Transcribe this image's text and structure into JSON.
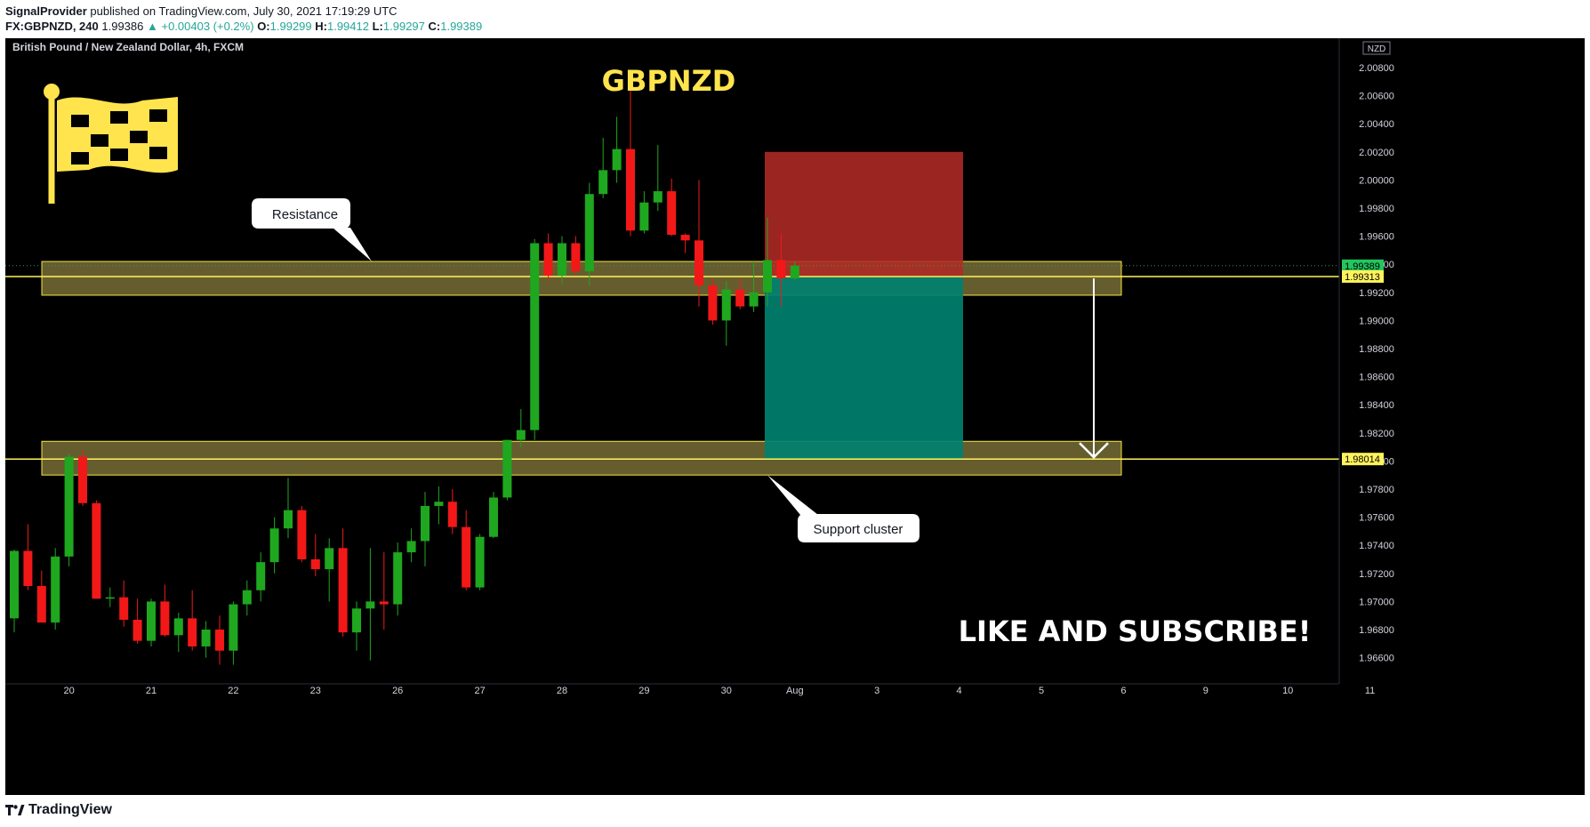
{
  "header": {
    "author": "SignalProvider",
    "published_text": "published on TradingView.com, July 30, 2021 17:19:29 UTC",
    "symbol_interval": "FX:GBPNZD, 240",
    "last": "1.99386",
    "change": "▲ +0.00403 (+0.2%)",
    "o_label": "O:",
    "o": "1.99299",
    "h_label": "H:",
    "h": "1.99412",
    "l_label": "L:",
    "l": "1.99297",
    "c_label": "C:",
    "c": "1.99389"
  },
  "chart": {
    "legend": "British Pound / New Zealand Dollar, 4h, FXCM",
    "currency_badge": "NZD",
    "headline": "GBPNZD",
    "cta": "LIKE AND SUBSCRIBE!",
    "resistance_label": "Resistance",
    "support_label": "Support cluster",
    "price_tag_current": "1.99389",
    "price_tag_entry": "1.99313",
    "price_tag_target": "1.98014"
  },
  "footer": {
    "brand": "TradingView"
  },
  "colors": {
    "background": "#000000",
    "bull": "#1fa71f",
    "bear": "#f21818",
    "zone_fill": "#6b6232",
    "zone_border": "#f5e63c",
    "stop_fill": "#b02a26",
    "target_fill": "#008070",
    "accent_yellow": "#ffe44d",
    "tag_yellow": "#fff35c",
    "tag_green": "#22c55e"
  },
  "chart_data": {
    "type": "candlestick",
    "title": "GBPNZD",
    "y_ticks": [
      "2.00800",
      "2.00600",
      "2.00400",
      "2.00200",
      "2.00000",
      "1.99800",
      "1.99600",
      "1.99400",
      "1.99200",
      "1.99000",
      "1.98800",
      "1.98600",
      "1.98400",
      "1.98200",
      "1.98000",
      "1.97800",
      "1.97600",
      "1.97400",
      "1.97200",
      "1.97000",
      "1.96800",
      "1.96600"
    ],
    "x_ticks": [
      {
        "label": "20",
        "bar": 4
      },
      {
        "label": "21",
        "bar": 10
      },
      {
        "label": "22",
        "bar": 16
      },
      {
        "label": "23",
        "bar": 22
      },
      {
        "label": "26",
        "bar": 28
      },
      {
        "label": "27",
        "bar": 34
      },
      {
        "label": "28",
        "bar": 40
      },
      {
        "label": "29",
        "bar": 46
      },
      {
        "label": "30",
        "bar": 52
      },
      {
        "label": "Aug",
        "bar": 57
      },
      {
        "label": "3",
        "bar": 63
      },
      {
        "label": "4",
        "bar": 69
      },
      {
        "label": "5",
        "bar": 75
      },
      {
        "label": "6",
        "bar": 81
      },
      {
        "label": "9",
        "bar": 87
      },
      {
        "label": "10",
        "bar": 93
      },
      {
        "label": "11",
        "bar": 99
      }
    ],
    "ylim": [
      1.9652,
      2.0095
    ],
    "candles": [
      [
        1.9688,
        1.9737,
        1.9678,
        1.9736
      ],
      [
        1.9736,
        1.9755,
        1.9708,
        1.9711
      ],
      [
        1.9711,
        1.9722,
        1.9685,
        1.9685
      ],
      [
        1.9685,
        1.9738,
        1.968,
        1.9732
      ],
      [
        1.9732,
        1.9805,
        1.9725,
        1.9803
      ],
      [
        1.9803,
        1.9808,
        1.9768,
        1.977
      ],
      [
        1.977,
        1.9772,
        1.9702,
        1.9702
      ],
      [
        1.9702,
        1.971,
        1.9696,
        1.9703
      ],
      [
        1.9703,
        1.9715,
        1.9682,
        1.9687
      ],
      [
        1.9687,
        1.9702,
        1.967,
        1.9672
      ],
      [
        1.9672,
        1.9702,
        1.9668,
        1.97
      ],
      [
        1.97,
        1.9712,
        1.9675,
        1.9676
      ],
      [
        1.9676,
        1.9692,
        1.9664,
        1.9688
      ],
      [
        1.9688,
        1.9708,
        1.9665,
        1.9668
      ],
      [
        1.9668,
        1.9686,
        1.966,
        1.968
      ],
      [
        1.968,
        1.969,
        1.9655,
        1.9665
      ],
      [
        1.9665,
        1.97,
        1.9655,
        1.9698
      ],
      [
        1.9698,
        1.9715,
        1.969,
        1.9708
      ],
      [
        1.9708,
        1.9735,
        1.97,
        1.9728
      ],
      [
        1.9728,
        1.976,
        1.972,
        1.9752
      ],
      [
        1.9752,
        1.9788,
        1.9745,
        1.9765
      ],
      [
        1.9765,
        1.9768,
        1.9728,
        1.973
      ],
      [
        1.973,
        1.9748,
        1.9718,
        1.9723
      ],
      [
        1.9723,
        1.9745,
        1.97,
        1.9738
      ],
      [
        1.9738,
        1.9752,
        1.9675,
        1.9678
      ],
      [
        1.9678,
        1.97,
        1.9665,
        1.9695
      ],
      [
        1.9695,
        1.9738,
        1.9658,
        1.97
      ],
      [
        1.97,
        1.9735,
        1.968,
        1.9698
      ],
      [
        1.9698,
        1.9742,
        1.969,
        1.9735
      ],
      [
        1.9735,
        1.9752,
        1.9728,
        1.9743
      ],
      [
        1.9743,
        1.9778,
        1.9725,
        1.9768
      ],
      [
        1.9768,
        1.9782,
        1.9755,
        1.9771
      ],
      [
        1.9771,
        1.978,
        1.9748,
        1.9753
      ],
      [
        1.9753,
        1.9765,
        1.9708,
        1.971
      ],
      [
        1.971,
        1.9748,
        1.9708,
        1.9746
      ],
      [
        1.9746,
        1.9778,
        1.9745,
        1.9774
      ],
      [
        1.9774,
        1.9815,
        1.9772,
        1.9815
      ],
      [
        1.9815,
        1.9837,
        1.981,
        1.9822
      ],
      [
        1.9822,
        1.9958,
        1.9815,
        1.9955
      ],
      [
        1.9955,
        1.9962,
        1.9928,
        1.9932
      ],
      [
        1.9932,
        1.996,
        1.9926,
        1.9955
      ],
      [
        1.9955,
        1.996,
        1.9932,
        1.9935
      ],
      [
        1.9935,
        1.9998,
        1.9925,
        1.999
      ],
      [
        1.999,
        2.003,
        1.9987,
        2.0007
      ],
      [
        2.0007,
        2.0045,
        1.9998,
        2.0022
      ],
      [
        2.0022,
        2.0072,
        1.996,
        1.9964
      ],
      [
        1.9964,
        1.9992,
        1.9962,
        1.9984
      ],
      [
        1.9984,
        2.0025,
        1.9978,
        1.9992
      ],
      [
        1.9992,
        2.0001,
        1.996,
        1.9961
      ],
      [
        1.9961,
        1.9962,
        1.9948,
        1.9957
      ],
      [
        1.9957,
        2.0,
        1.991,
        1.9925
      ],
      [
        1.9925,
        1.993,
        1.9897,
        1.99
      ],
      [
        1.99,
        1.9928,
        1.9882,
        1.9922
      ],
      [
        1.9922,
        1.993,
        1.9908,
        1.991
      ],
      [
        1.991,
        1.9942,
        1.9906,
        1.992
      ],
      [
        1.992,
        1.9973,
        1.991,
        1.9943
      ],
      [
        1.9943,
        1.9962,
        1.991,
        1.993
      ],
      [
        1.993,
        1.9942,
        1.9929,
        1.9939
      ]
    ],
    "zones": [
      {
        "name": "Resistance",
        "from": 1.9918,
        "to": 1.9942
      },
      {
        "name": "Support cluster",
        "from": 1.979,
        "to": 1.9814
      }
    ],
    "position": {
      "direction": "short",
      "entry": 1.99313,
      "stop": 2.002,
      "target": 1.98014
    },
    "lines": [
      1.99313,
      1.98014
    ]
  }
}
